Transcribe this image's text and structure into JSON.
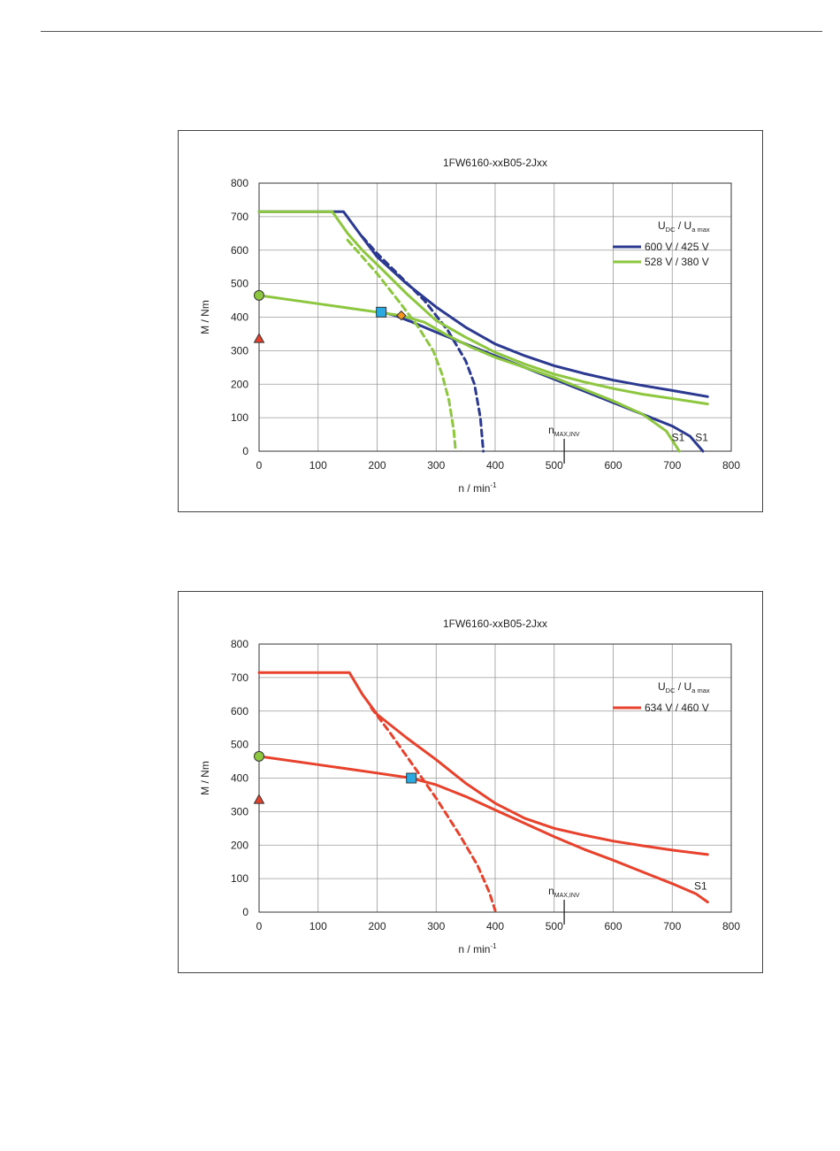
{
  "chart_data": [
    {
      "type": "line",
      "title": "1FW6160-xxB05-2Jxx",
      "xlabel": "n / min",
      "xlabel_sup": "-1",
      "ylabel": "M / Nm",
      "xlim": [
        0,
        800
      ],
      "ylim": [
        0,
        800
      ],
      "xticks": [
        0,
        100,
        200,
        300,
        400,
        500,
        600,
        700,
        800
      ],
      "yticks": [
        0,
        100,
        200,
        300,
        400,
        500,
        600,
        700,
        800
      ],
      "grid": true,
      "legend_position": "right",
      "legend_header": {
        "u": "U",
        "u_sub": "DC",
        "sep": " / ",
        "ua": "U",
        "ua_sub": "a max"
      },
      "legend": [
        {
          "label": "600 V / 425 V",
          "color": "#2b3990"
        },
        {
          "label": "528 V / 380 V",
          "color": "#8dc63f"
        }
      ],
      "marker_label": {
        "text": "n",
        "sub": "MAX,INV",
        "x": 517
      },
      "series": [
        {
          "color": "#2b3990",
          "dash": false,
          "points": [
            [
              0,
              715
            ],
            [
              143,
              715
            ],
            [
              170,
              650
            ],
            [
              200,
              580
            ],
            [
              250,
              500
            ],
            [
              300,
              430
            ],
            [
              350,
              370
            ],
            [
              400,
              320
            ],
            [
              450,
              285
            ],
            [
              500,
              255
            ],
            [
              550,
              232
            ],
            [
              600,
              212
            ],
            [
              650,
              196
            ],
            [
              700,
              181
            ],
            [
              760,
              163
            ]
          ]
        },
        {
          "color": "#2b3990",
          "dash": false,
          "points": [
            [
              208,
              415
            ],
            [
              230,
              405
            ],
            [
              260,
              385
            ],
            [
              300,
              355
            ],
            [
              350,
              320
            ],
            [
              400,
              285
            ],
            [
              450,
              250
            ],
            [
              500,
              215
            ],
            [
              550,
              180
            ],
            [
              600,
              145
            ],
            [
              650,
              110
            ],
            [
              700,
              75
            ],
            [
              730,
              45
            ],
            [
              752,
              0
            ]
          ]
        },
        {
          "color": "#2b3990",
          "dash": true,
          "points": [
            [
              175,
              640
            ],
            [
              200,
              590
            ],
            [
              240,
              520
            ],
            [
              280,
              450
            ],
            [
              320,
              360
            ],
            [
              350,
              270
            ],
            [
              365,
              200
            ],
            [
              375,
              100
            ],
            [
              380,
              0
            ]
          ]
        },
        {
          "color": "#8dc63f",
          "dash": false,
          "points": [
            [
              0,
              715
            ],
            [
              124,
              715
            ],
            [
              150,
              650
            ],
            [
              175,
              600
            ],
            [
              210,
              540
            ],
            [
              250,
              470
            ],
            [
              300,
              390
            ],
            [
              350,
              340
            ],
            [
              400,
              295
            ],
            [
              450,
              260
            ],
            [
              500,
              230
            ],
            [
              550,
              207
            ],
            [
              600,
              187
            ],
            [
              650,
              170
            ],
            [
              700,
              157
            ],
            [
              760,
              141
            ]
          ]
        },
        {
          "color": "#8dc63f",
          "dash": false,
          "points": [
            [
              0,
              465
            ],
            [
              100,
              440
            ],
            [
              200,
              415
            ],
            [
              240,
              405
            ],
            [
              280,
              385
            ],
            [
              320,
              345
            ],
            [
              360,
              310
            ],
            [
              400,
              280
            ],
            [
              450,
              250
            ],
            [
              500,
              220
            ],
            [
              550,
              185
            ],
            [
              600,
              150
            ],
            [
              650,
              110
            ],
            [
              690,
              60
            ],
            [
              712,
              0
            ]
          ]
        },
        {
          "color": "#8dc63f",
          "dash": true,
          "points": [
            [
              150,
              630
            ],
            [
              200,
              530
            ],
            [
              240,
              440
            ],
            [
              270,
              370
            ],
            [
              295,
              300
            ],
            [
              310,
              230
            ],
            [
              322,
              150
            ],
            [
              330,
              60
            ],
            [
              333,
              0
            ]
          ]
        }
      ],
      "markers": [
        {
          "shape": "circle",
          "x": 0,
          "y": 465,
          "color": "#8dc63f"
        },
        {
          "shape": "triangle",
          "x": 0,
          "y": 335,
          "color": "#e2402b"
        },
        {
          "shape": "square",
          "x": 207,
          "y": 415,
          "color": "#29abe2"
        },
        {
          "shape": "diamond",
          "x": 241,
          "y": 405,
          "color": "#f7941d"
        }
      ],
      "annotations": [
        {
          "text": "S1",
          "x": 710,
          "y": 25
        },
        {
          "text": "S1",
          "x": 750,
          "y": 25
        }
      ]
    },
    {
      "type": "line",
      "title": "1FW6160-xxB05-2Jxx",
      "xlabel": "n / min",
      "xlabel_sup": "-1",
      "ylabel": "M / Nm",
      "xlim": [
        0,
        800
      ],
      "ylim": [
        0,
        800
      ],
      "xticks": [
        0,
        100,
        200,
        300,
        400,
        500,
        600,
        700,
        800
      ],
      "yticks": [
        0,
        100,
        200,
        300,
        400,
        500,
        600,
        700,
        800
      ],
      "grid": true,
      "legend_position": "right",
      "legend_header": {
        "u": "U",
        "u_sub": "DC",
        "sep": " / ",
        "ua": "U",
        "ua_sub": "a max"
      },
      "legend": [
        {
          "label": "634 V / 460 V",
          "color": "#e8412c"
        }
      ],
      "marker_label": {
        "text": "n",
        "sub": "MAX,INV",
        "x": 517
      },
      "series": [
        {
          "color": "#e8412c",
          "dash": false,
          "points": [
            [
              0,
              715
            ],
            [
              153,
              715
            ],
            [
              175,
              650
            ],
            [
              200,
              590
            ],
            [
              250,
              520
            ],
            [
              300,
              455
            ],
            [
              350,
              385
            ],
            [
              400,
              325
            ],
            [
              450,
              280
            ],
            [
              500,
              250
            ],
            [
              550,
              230
            ],
            [
              600,
              212
            ],
            [
              650,
              198
            ],
            [
              700,
              185
            ],
            [
              760,
              172
            ]
          ]
        },
        {
          "color": "#e8412c",
          "dash": false,
          "points": [
            [
              0,
              465
            ],
            [
              100,
              440
            ],
            [
              200,
              415
            ],
            [
              258,
              400
            ],
            [
              300,
              380
            ],
            [
              350,
              345
            ],
            [
              400,
              305
            ],
            [
              450,
              265
            ],
            [
              500,
              225
            ],
            [
              550,
              188
            ],
            [
              600,
              155
            ],
            [
              650,
              120
            ],
            [
              700,
              85
            ],
            [
              740,
              55
            ],
            [
              760,
              30
            ]
          ]
        },
        {
          "color": "#e8412c",
          "dash": true,
          "points": [
            [
              190,
              610
            ],
            [
              220,
              540
            ],
            [
              260,
              440
            ],
            [
              300,
              340
            ],
            [
              340,
              230
            ],
            [
              370,
              140
            ],
            [
              390,
              60
            ],
            [
              400,
              5
            ]
          ]
        }
      ],
      "markers": [
        {
          "shape": "circle",
          "x": 0,
          "y": 465,
          "color": "#8dc63f"
        },
        {
          "shape": "triangle",
          "x": 0,
          "y": 335,
          "color": "#e2402b"
        },
        {
          "shape": "square",
          "x": 258,
          "y": 400,
          "color": "#29abe2"
        }
      ],
      "annotations": [
        {
          "text": "S1",
          "x": 748,
          "y": 62
        }
      ]
    }
  ]
}
